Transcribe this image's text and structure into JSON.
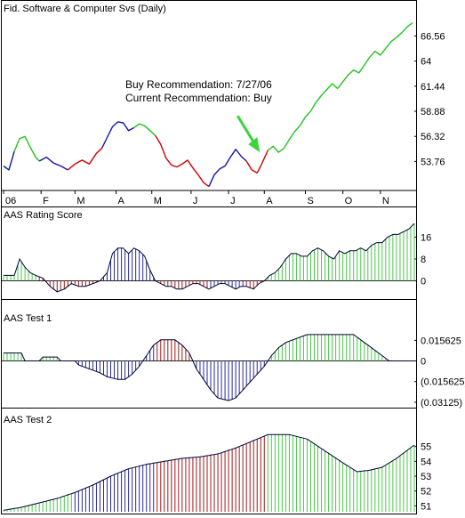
{
  "window": {
    "chart_title": "Fid. Software & Computer Svs (Daily)"
  },
  "colors": {
    "up": "#22c322",
    "down": "#d40000",
    "neutral": "#1515a8",
    "hist_pos": "#48c848",
    "hist_neg": "#2a2aa0",
    "hist_neg_red": "#a01818",
    "arrow": "#3bd43b",
    "axis": "#000000"
  },
  "chart_data": [
    {
      "id": "price",
      "type": "line",
      "title": "Fid. Software & Computer Svs (Daily)",
      "ylabel_ticks": [
        "66.56",
        "64",
        "61.44",
        "58.88",
        "56.32",
        "53.76"
      ],
      "yticks": [
        66.56,
        64,
        61.44,
        58.88,
        56.32,
        53.76
      ],
      "ylim": [
        50.8,
        68.6
      ],
      "xlim": [
        0,
        230
      ],
      "month_labels": [
        "06",
        "F",
        "M",
        "A",
        "M",
        "J",
        "J",
        "A",
        "S",
        "O",
        "N"
      ],
      "month_ticks": [
        0,
        21,
        40,
        63,
        83,
        105,
        126,
        146,
        169,
        190,
        211
      ],
      "annotations": [
        "Buy Recommendation: 7/27/06",
        "Current Recommendation: Buy"
      ],
      "arrow_at": 144,
      "segments": [
        {
          "color": "neutral",
          "points": [
            [
              0,
              53.3
            ],
            [
              3,
              52.9
            ],
            [
              6,
              54.8
            ]
          ]
        },
        {
          "color": "up",
          "points": [
            [
              6,
              54.8
            ],
            [
              9,
              56.1
            ],
            [
              12,
              56.3
            ],
            [
              15,
              55.2
            ],
            [
              18,
              54.2
            ],
            [
              20,
              53.8
            ]
          ]
        },
        {
          "color": "neutral",
          "points": [
            [
              20,
              53.8
            ],
            [
              24,
              54.2
            ],
            [
              28,
              53.6
            ],
            [
              32,
              53.3
            ],
            [
              36,
              52.9
            ]
          ]
        },
        {
          "color": "down",
          "points": [
            [
              36,
              52.9
            ],
            [
              40,
              53.5
            ],
            [
              44,
              53.9
            ],
            [
              48,
              53.5
            ],
            [
              52,
              54.6
            ],
            [
              55,
              55.1
            ]
          ]
        },
        {
          "color": "neutral",
          "points": [
            [
              55,
              55.1
            ],
            [
              58,
              56.2
            ],
            [
              61,
              57.3
            ],
            [
              64,
              57.8
            ],
            [
              67,
              57.7
            ],
            [
              70,
              56.9
            ],
            [
              73,
              57.2
            ]
          ]
        },
        {
          "color": "up",
          "points": [
            [
              73,
              57.2
            ],
            [
              76,
              57.6
            ],
            [
              79,
              57.4
            ],
            [
              82,
              56.9
            ],
            [
              85,
              56.4
            ]
          ]
        },
        {
          "color": "down",
          "points": [
            [
              85,
              56.4
            ],
            [
              88,
              55.5
            ],
            [
              91,
              54.1
            ],
            [
              94,
              53.4
            ],
            [
              97,
              53.2
            ],
            [
              100,
              53.5
            ],
            [
              103,
              53.9
            ],
            [
              106,
              53.1
            ],
            [
              109,
              52.4
            ],
            [
              112,
              51.6
            ],
            [
              115,
              51.2
            ]
          ]
        },
        {
          "color": "neutral",
          "points": [
            [
              115,
              51.2
            ],
            [
              118,
              52.4
            ],
            [
              121,
              53.0
            ],
            [
              124,
              53.3
            ],
            [
              127,
              54.2
            ],
            [
              130,
              55.0
            ],
            [
              133,
              54.3
            ],
            [
              136,
              53.8
            ]
          ]
        },
        {
          "color": "down",
          "points": [
            [
              136,
              53.8
            ],
            [
              139,
              52.9
            ],
            [
              142,
              52.6
            ],
            [
              144,
              53.3
            ],
            [
              146,
              54.1
            ],
            [
              148,
              54.9
            ]
          ]
        },
        {
          "color": "up",
          "points": [
            [
              148,
              54.9
            ],
            [
              151,
              55.3
            ],
            [
              154,
              54.7
            ],
            [
              157,
              55.1
            ],
            [
              160,
              56.0
            ],
            [
              163,
              56.8
            ],
            [
              166,
              57.4
            ],
            [
              169,
              58.3
            ],
            [
              172,
              58.9
            ],
            [
              175,
              59.8
            ],
            [
              178,
              60.5
            ],
            [
              181,
              61.1
            ],
            [
              184,
              61.7
            ],
            [
              187,
              61.2
            ],
            [
              190,
              61.9
            ],
            [
              193,
              62.6
            ],
            [
              196,
              63.1
            ],
            [
              199,
              62.8
            ],
            [
              202,
              63.6
            ],
            [
              205,
              64.4
            ],
            [
              208,
              65.0
            ],
            [
              211,
              64.6
            ],
            [
              214,
              65.3
            ],
            [
              217,
              66.0
            ],
            [
              220,
              66.4
            ],
            [
              223,
              66.9
            ],
            [
              226,
              67.5
            ],
            [
              229,
              67.9
            ]
          ]
        }
      ]
    },
    {
      "id": "rating",
      "type": "bar",
      "title": "AAS Rating Score",
      "ylabel_ticks": [
        "16",
        "8",
        "0"
      ],
      "yticks": [
        16,
        8,
        0
      ],
      "ylim": [
        -6,
        22
      ],
      "xlim": [
        0,
        230
      ],
      "keypoints": [
        [
          0,
          2
        ],
        [
          6,
          2
        ],
        [
          9,
          8
        ],
        [
          12,
          5
        ],
        [
          15,
          3
        ],
        [
          18,
          2
        ],
        [
          22,
          1
        ],
        [
          26,
          -2
        ],
        [
          30,
          -4
        ],
        [
          34,
          -3
        ],
        [
          38,
          -1
        ],
        [
          42,
          -2
        ],
        [
          46,
          -2
        ],
        [
          50,
          -1
        ],
        [
          54,
          0
        ],
        [
          58,
          3
        ],
        [
          61,
          10
        ],
        [
          64,
          12
        ],
        [
          67,
          12
        ],
        [
          70,
          10
        ],
        [
          73,
          12
        ],
        [
          76,
          11
        ],
        [
          79,
          9
        ],
        [
          82,
          4
        ],
        [
          85,
          0
        ],
        [
          88,
          -1
        ],
        [
          91,
          -2
        ],
        [
          94,
          -2
        ],
        [
          97,
          -3
        ],
        [
          100,
          -3
        ],
        [
          103,
          -2
        ],
        [
          106,
          -1
        ],
        [
          109,
          -1
        ],
        [
          112,
          -2
        ],
        [
          115,
          -3
        ],
        [
          118,
          -2
        ],
        [
          121,
          -1
        ],
        [
          124,
          -1
        ],
        [
          127,
          -2
        ],
        [
          130,
          -3
        ],
        [
          133,
          -2
        ],
        [
          136,
          -2
        ],
        [
          140,
          -3
        ],
        [
          143,
          -1
        ],
        [
          146,
          0
        ],
        [
          149,
          2
        ],
        [
          152,
          3
        ],
        [
          155,
          5
        ],
        [
          158,
          8
        ],
        [
          161,
          10
        ],
        [
          164,
          10
        ],
        [
          167,
          9
        ],
        [
          170,
          9
        ],
        [
          173,
          11
        ],
        [
          176,
          12
        ],
        [
          179,
          11
        ],
        [
          182,
          9
        ],
        [
          185,
          8
        ],
        [
          188,
          11
        ],
        [
          191,
          10
        ],
        [
          194,
          11
        ],
        [
          197,
          11
        ],
        [
          200,
          12
        ],
        [
          203,
          11
        ],
        [
          206,
          13
        ],
        [
          209,
          14
        ],
        [
          212,
          14
        ],
        [
          215,
          16
        ],
        [
          218,
          17
        ],
        [
          221,
          17
        ],
        [
          224,
          18
        ],
        [
          227,
          19
        ],
        [
          230,
          21
        ]
      ],
      "color_spans": [
        [
          0,
          6,
          "hist_pos"
        ],
        [
          6,
          20,
          "hist_pos"
        ],
        [
          20,
          55,
          "hist_neg_red"
        ],
        [
          55,
          85,
          "hist_neg"
        ],
        [
          85,
          115,
          "hist_neg_red"
        ],
        [
          115,
          136,
          "hist_neg"
        ],
        [
          136,
          148,
          "hist_neg_red"
        ],
        [
          148,
          230,
          "hist_pos"
        ]
      ]
    },
    {
      "id": "test1",
      "type": "bar",
      "title": "AAS Test 1",
      "ylabel_ticks": [
        "0.015625",
        "0",
        "(0.015625)",
        "(0.03125)"
      ],
      "yticks": [
        0.015625,
        0,
        -0.015625,
        -0.03125
      ],
      "ylim": [
        -0.034,
        0.028
      ],
      "xlim": [
        0,
        230
      ],
      "keypoints": [
        [
          0,
          0.006
        ],
        [
          10,
          0.006
        ],
        [
          12,
          0.0
        ],
        [
          20,
          0.0
        ],
        [
          22,
          0.003
        ],
        [
          30,
          0.003
        ],
        [
          32,
          0.0
        ],
        [
          40,
          0.0
        ],
        [
          42,
          -0.003
        ],
        [
          48,
          -0.006
        ],
        [
          54,
          -0.009
        ],
        [
          58,
          -0.012
        ],
        [
          64,
          -0.014
        ],
        [
          68,
          -0.014
        ],
        [
          72,
          -0.01
        ],
        [
          76,
          -0.004
        ],
        [
          80,
          0.004
        ],
        [
          84,
          0.012
        ],
        [
          88,
          0.016
        ],
        [
          96,
          0.016
        ],
        [
          100,
          0.012
        ],
        [
          104,
          0.006
        ],
        [
          106,
          0.0
        ],
        [
          108,
          -0.006
        ],
        [
          112,
          -0.014
        ],
        [
          116,
          -0.022
        ],
        [
          120,
          -0.028
        ],
        [
          126,
          -0.03
        ],
        [
          130,
          -0.028
        ],
        [
          134,
          -0.022
        ],
        [
          138,
          -0.016
        ],
        [
          142,
          -0.01
        ],
        [
          146,
          -0.004
        ],
        [
          150,
          0.004
        ],
        [
          154,
          0.01
        ],
        [
          158,
          0.014
        ],
        [
          162,
          0.016
        ],
        [
          166,
          0.018
        ],
        [
          170,
          0.02
        ],
        [
          176,
          0.02
        ],
        [
          182,
          0.02
        ],
        [
          190,
          0.02
        ],
        [
          196,
          0.02
        ],
        [
          200,
          0.016
        ],
        [
          204,
          0.012
        ],
        [
          208,
          0.008
        ],
        [
          212,
          0.004
        ],
        [
          216,
          0.0
        ],
        [
          230,
          0.0
        ]
      ],
      "color_spans": [
        [
          0,
          42,
          "hist_pos"
        ],
        [
          42,
          85,
          "hist_neg"
        ],
        [
          85,
          106,
          "hist_neg_red"
        ],
        [
          106,
          148,
          "hist_neg"
        ],
        [
          148,
          230,
          "hist_pos"
        ]
      ]
    },
    {
      "id": "test2",
      "type": "area",
      "title": "AAS Test 2",
      "ylabel_ticks": [
        "55",
        "54",
        "53",
        "52",
        "51"
      ],
      "yticks": [
        55,
        54,
        53,
        52,
        51
      ],
      "ylim": [
        50.6,
        56.3
      ],
      "xlim": [
        0,
        230
      ],
      "keypoints": [
        [
          0,
          50.7
        ],
        [
          10,
          50.9
        ],
        [
          20,
          51.2
        ],
        [
          30,
          51.5
        ],
        [
          40,
          51.9
        ],
        [
          50,
          52.4
        ],
        [
          60,
          53.0
        ],
        [
          70,
          53.5
        ],
        [
          80,
          53.8
        ],
        [
          90,
          54.0
        ],
        [
          100,
          54.2
        ],
        [
          110,
          54.3
        ],
        [
          120,
          54.5
        ],
        [
          130,
          54.9
        ],
        [
          140,
          55.4
        ],
        [
          148,
          55.8
        ],
        [
          160,
          55.8
        ],
        [
          170,
          55.5
        ],
        [
          180,
          54.7
        ],
        [
          190,
          53.9
        ],
        [
          198,
          53.3
        ],
        [
          205,
          53.4
        ],
        [
          212,
          53.6
        ],
        [
          220,
          54.2
        ],
        [
          230,
          55.1
        ]
      ],
      "color_spans": [
        [
          0,
          40,
          "hist_pos"
        ],
        [
          40,
          85,
          "hist_neg"
        ],
        [
          85,
          148,
          "hist_neg_red"
        ],
        [
          148,
          230,
          "hist_pos"
        ]
      ]
    }
  ]
}
